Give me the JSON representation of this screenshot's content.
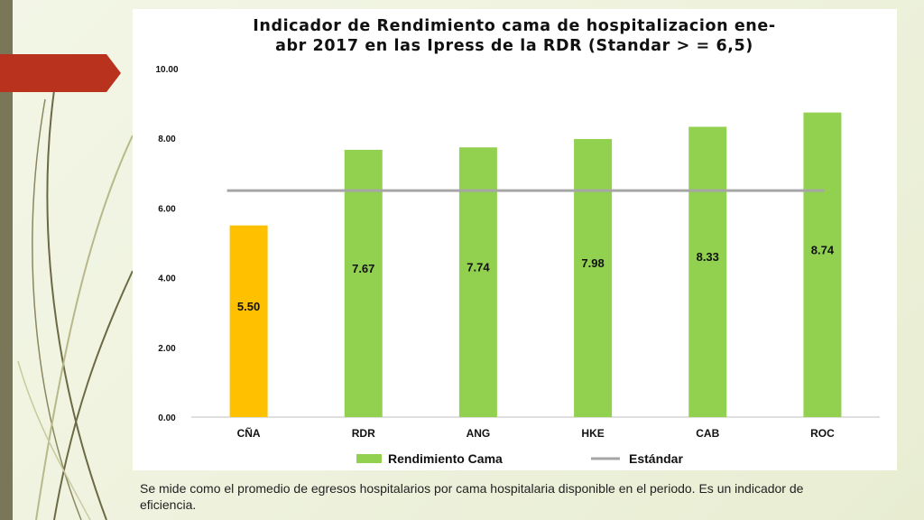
{
  "slide": {
    "caption": "Se mide como el promedio de egresos hospitalarios por cama hospitalaria disponible en el periodo.  Es un indicador de eficiencia.",
    "accent_colors": {
      "strip": "#7a7658",
      "arrow": "#b8321e",
      "swoosh": "#6b6a45"
    }
  },
  "chart_data": {
    "type": "bar",
    "title_lines": [
      "Indicador de Rendimiento cama de hospitalizacion ene-",
      "abr 2017 en las Ipress de la RDR (Standar > = 6,5)"
    ],
    "categories": [
      "CÑA",
      "RDR",
      "ANG",
      "HKE",
      "CAB",
      "ROC"
    ],
    "series": [
      {
        "name": "Rendimiento Cama",
        "values": [
          5.5,
          7.67,
          7.74,
          7.98,
          8.33,
          8.74
        ],
        "value_labels": [
          "5.50",
          "7.67",
          "7.74",
          "7.98",
          "8.33",
          "8.74"
        ],
        "colors": [
          "#ffc000",
          "#92d050",
          "#92d050",
          "#92d050",
          "#92d050",
          "#92d050"
        ]
      },
      {
        "name": "Estándar",
        "type": "line",
        "value": 6.5,
        "color": "#a6a6a6"
      }
    ],
    "yticks": [
      "0.00",
      "2.00",
      "4.00",
      "6.00",
      "8.00",
      "10.00"
    ],
    "ylim": [
      0,
      10
    ],
    "grid": false,
    "legend": "bottom"
  }
}
